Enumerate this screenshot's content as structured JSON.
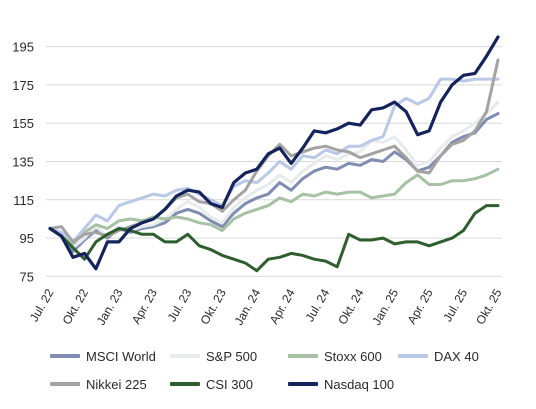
{
  "chart_data": {
    "type": "line",
    "title": "",
    "xlabel": "",
    "ylabel": "",
    "ylim": [
      70,
      200
    ],
    "yticks": [
      75,
      95,
      115,
      135,
      155,
      175,
      195
    ],
    "xtick_labels": [
      "Jul. 22",
      "Okt. 22",
      "Jan. 23",
      "Apr. 23",
      "Jul. 23",
      "Okt. 23",
      "Jan. 24",
      "Apr. 24",
      "Jul. 24",
      "Okt. 24",
      "Jan. 25",
      "Apr. 25",
      "Jul. 25",
      "Okt. 25"
    ],
    "grid": "horizontal",
    "legend_position": "bottom",
    "x": [
      "2022-07",
      "2022-08",
      "2022-09",
      "2022-10",
      "2022-11",
      "2022-12",
      "2023-01",
      "2023-02",
      "2023-03",
      "2023-04",
      "2023-05",
      "2023-06",
      "2023-07",
      "2023-08",
      "2023-09",
      "2023-10",
      "2023-11",
      "2023-12",
      "2024-01",
      "2024-02",
      "2024-03",
      "2024-04",
      "2024-05",
      "2024-06",
      "2024-07",
      "2024-08",
      "2024-09",
      "2024-10",
      "2024-11",
      "2024-12",
      "2025-01",
      "2025-02",
      "2025-03",
      "2025-04",
      "2025-05",
      "2025-06",
      "2025-07",
      "2025-08",
      "2025-09",
      "2025-10"
    ],
    "series": [
      {
        "name": "MSCI World",
        "color": "#7f8db3",
        "width": 3,
        "values": [
          100,
          96,
          88,
          94,
          99,
          95,
          100,
          98,
          100,
          101,
          103,
          108,
          110,
          108,
          104,
          101,
          108,
          113,
          116,
          118,
          124,
          120,
          126,
          130,
          132,
          131,
          134,
          133,
          136,
          135,
          140,
          136,
          130,
          132,
          138,
          145,
          148,
          150,
          157,
          160
        ]
      },
      {
        "name": "S&P 500",
        "color": "#e9eaec",
        "width": 3,
        "values": [
          100,
          97,
          90,
          95,
          101,
          96,
          101,
          99,
          101,
          102,
          105,
          110,
          114,
          111,
          106,
          103,
          111,
          116,
          120,
          123,
          128,
          124,
          130,
          134,
          138,
          136,
          139,
          140,
          146,
          145,
          148,
          141,
          133,
          135,
          142,
          148,
          151,
          155,
          160,
          166
        ]
      },
      {
        "name": "Stoxx 600",
        "color": "#a6c1a3",
        "width": 3,
        "values": [
          100,
          97,
          92,
          98,
          102,
          100,
          104,
          105,
          104,
          106,
          105,
          106,
          105,
          103,
          102,
          99,
          105,
          108,
          110,
          112,
          116,
          114,
          118,
          117,
          119,
          118,
          119,
          119,
          116,
          117,
          118,
          124,
          128,
          123,
          123,
          125,
          125,
          126,
          128,
          131
        ]
      },
      {
        "name": "DAX 40",
        "color": "#b8c8e6",
        "width": 3,
        "values": [
          100,
          98,
          93,
          100,
          107,
          104,
          112,
          114,
          116,
          118,
          117,
          120,
          121,
          118,
          115,
          112,
          122,
          125,
          124,
          129,
          135,
          131,
          138,
          137,
          141,
          139,
          143,
          143,
          146,
          148,
          164,
          168,
          165,
          168,
          178,
          178,
          177,
          178,
          178,
          178
        ]
      },
      {
        "name": "Nikkei 225",
        "color": "#a3a3a3",
        "width": 3,
        "values": [
          100,
          101,
          93,
          97,
          98,
          96,
          99,
          101,
          103,
          105,
          110,
          116,
          118,
          114,
          113,
          109,
          115,
          120,
          130,
          138,
          144,
          138,
          140,
          142,
          143,
          141,
          140,
          137,
          139,
          141,
          143,
          137,
          130,
          129,
          138,
          144,
          146,
          151,
          161,
          188
        ]
      },
      {
        "name": "CSI 300",
        "color": "#2e5e2e",
        "width": 3,
        "values": [
          100,
          96,
          90,
          84,
          93,
          97,
          100,
          99,
          97,
          97,
          93,
          93,
          97,
          91,
          89,
          86,
          84,
          82,
          78,
          84,
          85,
          87,
          86,
          84,
          83,
          80,
          97,
          94,
          94,
          95,
          92,
          93,
          93,
          91,
          93,
          95,
          99,
          108,
          112,
          112
        ]
      },
      {
        "name": "Nasdaq 100",
        "color": "#14235b",
        "width": 3.2,
        "values": [
          100,
          96,
          85,
          87,
          79,
          93,
          93,
          100,
          103,
          105,
          110,
          117,
          120,
          119,
          113,
          111,
          124,
          129,
          131,
          139,
          142,
          134,
          142,
          151,
          150,
          152,
          155,
          154,
          162,
          163,
          166,
          161,
          149,
          151,
          166,
          175,
          180,
          181,
          190,
          200
        ]
      }
    ]
  }
}
